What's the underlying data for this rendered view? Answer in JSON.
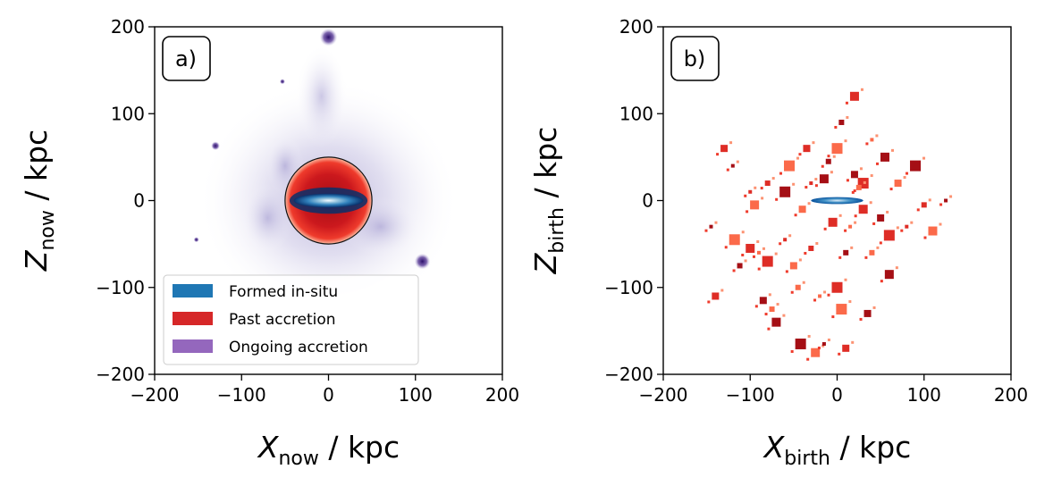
{
  "chart_data": [
    {
      "type": "heatmap",
      "panel_label": "a)",
      "xlabel": {
        "symbol": "X",
        "subscript": "now",
        "unit": " / kpc"
      },
      "ylabel": {
        "symbol": "Z",
        "subscript": "now",
        "unit": " / kpc"
      },
      "xlim": [
        -200,
        200
      ],
      "ylim": [
        -200,
        200
      ],
      "xticks": [
        -200,
        -100,
        0,
        100,
        200
      ],
      "yticks": [
        -200,
        -100,
        0,
        100,
        200
      ],
      "xtick_labels": [
        "−200",
        "−100",
        "0",
        "100",
        "200"
      ],
      "ytick_labels": [
        "−200",
        "−100",
        "0",
        "100",
        "200"
      ],
      "grid": false,
      "legend": {
        "placement": "lower-left",
        "entries": [
          {
            "label": "Formed in-situ",
            "color": "#1f77b4"
          },
          {
            "label": "Past accretion",
            "color": "#d62728"
          },
          {
            "label": "Ongoing accretion",
            "color": "#9467bd"
          }
        ]
      },
      "components": {
        "in_situ_disk": {
          "x": 0,
          "y": 0,
          "half_length_kpc": 40,
          "half_thickness_kpc": 8
        },
        "past_accretion_sphere": {
          "x": 0,
          "y": 0,
          "radius_kpc": 50
        },
        "ongoing_satellites": [
          {
            "x": 0,
            "y": 188,
            "size_kpc": 10
          },
          {
            "x": 108,
            "y": -70,
            "size_kpc": 9
          },
          {
            "x": -130,
            "y": 63,
            "size_kpc": 5
          },
          {
            "x": -53,
            "y": 137,
            "size_kpc": 3
          },
          {
            "x": -152,
            "y": -45,
            "size_kpc": 3
          }
        ],
        "ongoing_streams": [
          {
            "x": -50,
            "y": 40,
            "rx": 22,
            "ry": 35
          },
          {
            "x": -8,
            "y": 120,
            "rx": 30,
            "ry": 60
          },
          {
            "x": 60,
            "y": -30,
            "rx": 45,
            "ry": 35
          },
          {
            "x": -70,
            "y": -20,
            "rx": 30,
            "ry": 40
          }
        ]
      }
    },
    {
      "type": "heatmap",
      "panel_label": "b)",
      "xlabel": {
        "symbol": "X",
        "subscript": "birth",
        "unit": " / kpc"
      },
      "ylabel": {
        "symbol": "Z",
        "subscript": "birth",
        "unit": " / kpc"
      },
      "xlim": [
        -200,
        200
      ],
      "ylim": [
        -200,
        200
      ],
      "xticks": [
        -200,
        -100,
        0,
        100,
        200
      ],
      "yticks": [
        -200,
        -100,
        0,
        100,
        200
      ],
      "xtick_labels": [
        "−200",
        "−100",
        "0",
        "100",
        "200"
      ],
      "ytick_labels": [
        "−200",
        "−100",
        "0",
        "100",
        "200"
      ],
      "grid": false,
      "components": {
        "in_situ_disk": {
          "x": 0,
          "y": 0,
          "half_length_kpc": 30,
          "half_thickness_kpc": 4
        },
        "past_accretion_clumps": [
          {
            "x": -145,
            "y": -30
          },
          {
            "x": -140,
            "y": -110
          },
          {
            "x": -118,
            "y": -45
          },
          {
            "x": -112,
            "y": -75
          },
          {
            "x": -100,
            "y": -55
          },
          {
            "x": -90,
            "y": -60
          },
          {
            "x": -85,
            "y": -115
          },
          {
            "x": -80,
            "y": -70
          },
          {
            "x": -75,
            "y": -125
          },
          {
            "x": -70,
            "y": -140
          },
          {
            "x": -60,
            "y": -45
          },
          {
            "x": -50,
            "y": -75
          },
          {
            "x": -42,
            "y": -165
          },
          {
            "x": -30,
            "y": -55
          },
          {
            "x": -25,
            "y": -175
          },
          {
            "x": -15,
            "y": -165
          },
          {
            "x": 10,
            "y": -170
          },
          {
            "x": 5,
            "y": -125
          },
          {
            "x": 10,
            "y": -60
          },
          {
            "x": -5,
            "y": -25
          },
          {
            "x": 15,
            "y": -30
          },
          {
            "x": 20,
            "y": 30
          },
          {
            "x": 30,
            "y": 20
          },
          {
            "x": 25,
            "y": 15
          },
          {
            "x": -15,
            "y": 25
          },
          {
            "x": -30,
            "y": 20
          },
          {
            "x": -40,
            "y": -10
          },
          {
            "x": -60,
            "y": 10
          },
          {
            "x": -80,
            "y": 20
          },
          {
            "x": -95,
            "y": -5
          },
          {
            "x": -120,
            "y": 40
          },
          {
            "x": -130,
            "y": 60
          },
          {
            "x": 0,
            "y": 60
          },
          {
            "x": 5,
            "y": 90
          },
          {
            "x": 20,
            "y": 120
          },
          {
            "x": 40,
            "y": 70
          },
          {
            "x": 50,
            "y": -20
          },
          {
            "x": 60,
            "y": -40
          },
          {
            "x": 40,
            "y": -60
          },
          {
            "x": 60,
            "y": -85
          },
          {
            "x": 80,
            "y": -30
          },
          {
            "x": 70,
            "y": 20
          },
          {
            "x": 90,
            "y": 40
          },
          {
            "x": 100,
            "y": -5
          },
          {
            "x": 110,
            "y": -35
          },
          {
            "x": 125,
            "y": 0
          },
          {
            "x": -35,
            "y": 60
          },
          {
            "x": -55,
            "y": 40
          },
          {
            "x": -10,
            "y": 45
          },
          {
            "x": 30,
            "y": -10
          },
          {
            "x": -20,
            "y": -110
          },
          {
            "x": 35,
            "y": -130
          },
          {
            "x": 0,
            "y": -100
          },
          {
            "x": -45,
            "y": -100
          },
          {
            "x": 55,
            "y": 50
          },
          {
            "x": -100,
            "y": 10
          }
        ]
      }
    }
  ]
}
